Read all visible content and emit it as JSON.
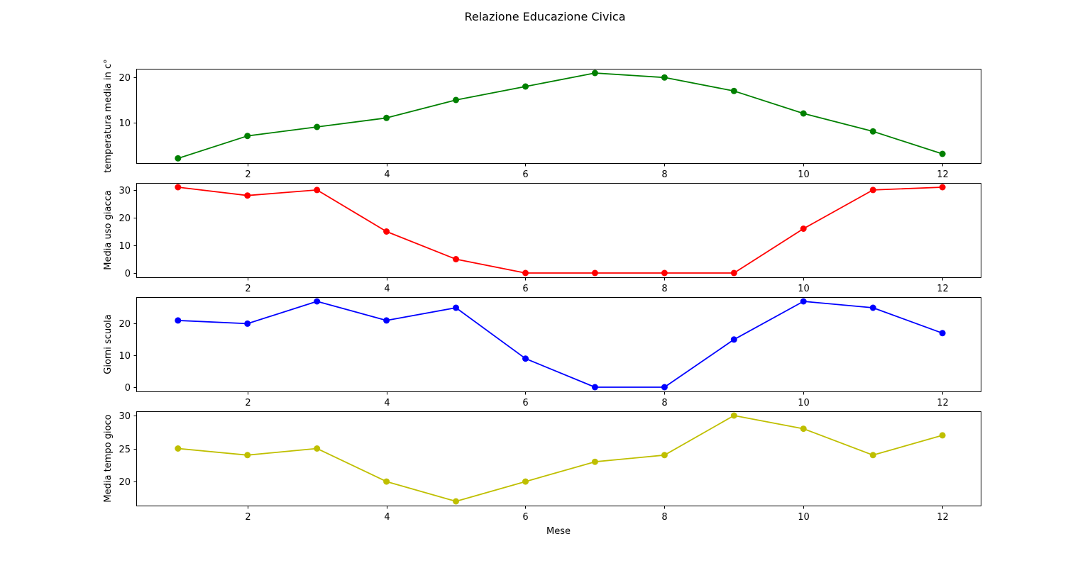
{
  "figure": {
    "title": "Relazione Educazione Civica",
    "xlabel": "Mese"
  },
  "chart_data": [
    {
      "type": "line",
      "xlabel": "",
      "ylabel": "temperatura media in c°",
      "xlim": [
        0.4,
        12.55
      ],
      "ylim": [
        0.95,
        21.95
      ],
      "xticks": [
        2,
        4,
        6,
        8,
        10,
        12
      ],
      "yticks": [
        10,
        20
      ],
      "grid": false,
      "series": [
        {
          "color": "#008000",
          "x": [
            1,
            2,
            3,
            4,
            5,
            6,
            7,
            8,
            9,
            10,
            11,
            12
          ],
          "y": [
            2,
            7,
            9,
            11,
            15,
            18,
            21,
            20,
            17,
            12,
            8,
            3
          ]
        }
      ]
    },
    {
      "type": "line",
      "xlabel": "",
      "ylabel": "Media uso giacca",
      "xlim": [
        0.4,
        12.55
      ],
      "ylim": [
        -1.55,
        32.55
      ],
      "xticks": [
        2,
        4,
        6,
        8,
        10,
        12
      ],
      "yticks": [
        0,
        10,
        20,
        30
      ],
      "grid": false,
      "series": [
        {
          "color": "#ff0000",
          "x": [
            1,
            2,
            3,
            4,
            5,
            6,
            7,
            8,
            9,
            10,
            11,
            12
          ],
          "y": [
            31,
            28,
            30,
            15,
            5,
            0,
            0,
            0,
            0,
            16,
            30,
            31
          ]
        }
      ]
    },
    {
      "type": "line",
      "xlabel": "",
      "ylabel": "Giorni scuola",
      "xlim": [
        0.4,
        12.55
      ],
      "ylim": [
        -1.35,
        28.35
      ],
      "xticks": [
        2,
        4,
        6,
        8,
        10,
        12
      ],
      "yticks": [
        0,
        10,
        20
      ],
      "grid": false,
      "series": [
        {
          "color": "#0000ff",
          "x": [
            1,
            2,
            3,
            4,
            5,
            6,
            7,
            8,
            9,
            10,
            11,
            12
          ],
          "y": [
            21,
            20,
            27,
            21,
            25,
            9,
            0,
            0,
            15,
            27,
            25,
            17
          ]
        }
      ]
    },
    {
      "type": "line",
      "xlabel": "Mese",
      "ylabel": "Media tempo gioco",
      "xlim": [
        0.4,
        12.55
      ],
      "ylim": [
        16.35,
        30.65
      ],
      "xticks": [
        2,
        4,
        6,
        8,
        10,
        12
      ],
      "yticks": [
        20,
        25,
        30
      ],
      "grid": false,
      "series": [
        {
          "color": "#bfbf00",
          "x": [
            1,
            2,
            3,
            4,
            5,
            6,
            7,
            8,
            9,
            10,
            11,
            12
          ],
          "y": [
            25,
            24,
            25,
            20,
            17,
            20,
            23,
            24,
            30,
            28,
            24,
            27
          ]
        }
      ]
    }
  ]
}
